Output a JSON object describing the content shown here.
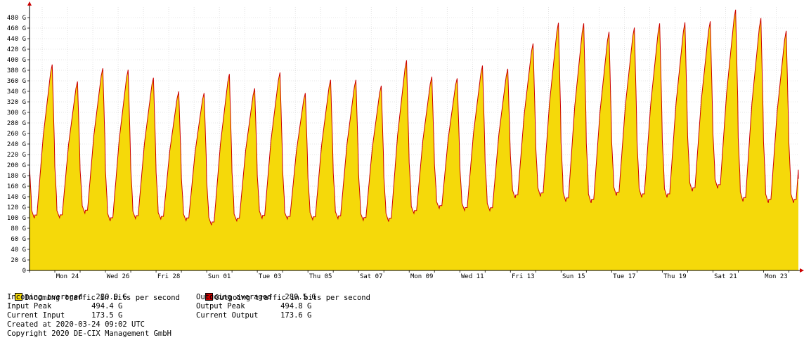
{
  "chart_data": {
    "type": "area",
    "y_unit_suffix": "G",
    "ylim": [
      0,
      500
    ],
    "y_ticks": [
      0,
      20,
      40,
      60,
      80,
      100,
      120,
      140,
      160,
      180,
      200,
      220,
      240,
      260,
      280,
      300,
      320,
      340,
      360,
      380,
      400,
      420,
      440,
      460,
      480
    ],
    "y_tick_labels": [
      "0",
      "20 G",
      "40 G",
      "60 G",
      "80 G",
      "100 G",
      "120 G",
      "140 G",
      "160 G",
      "180 G",
      "200 G",
      "220 G",
      "240 G",
      "260 G",
      "280 G",
      "300 G",
      "320 G",
      "340 G",
      "360 G",
      "380 G",
      "400 G",
      "420 G",
      "440 G",
      "460 G",
      "480 G"
    ],
    "x_day_start": "2020-02-23 00:00",
    "x_day_end": "2020-03-24 09:02",
    "x_tick_labels": [
      {
        "day": "2020-02-24",
        "label": "Mon 24"
      },
      {
        "day": "2020-02-26",
        "label": "Wed 26"
      },
      {
        "day": "2020-02-28",
        "label": "Fri 28"
      },
      {
        "day": "2020-03-01",
        "label": "Sun 01"
      },
      {
        "day": "2020-03-03",
        "label": "Tue 03"
      },
      {
        "day": "2020-03-05",
        "label": "Thu 05"
      },
      {
        "day": "2020-03-07",
        "label": "Sat 07"
      },
      {
        "day": "2020-03-09",
        "label": "Mon 09"
      },
      {
        "day": "2020-03-11",
        "label": "Wed 11"
      },
      {
        "day": "2020-03-13",
        "label": "Fri 13"
      },
      {
        "day": "2020-03-15",
        "label": "Sun 15"
      },
      {
        "day": "2020-03-17",
        "label": "Tue 17"
      },
      {
        "day": "2020-03-19",
        "label": "Thu 19"
      },
      {
        "day": "2020-03-21",
        "label": "Sat 21"
      },
      {
        "day": "2020-03-23",
        "label": "Mon 23"
      }
    ],
    "grid": true,
    "daily_peaks": {
      "days": [
        "2020-02-23",
        "2020-02-24",
        "2020-02-25",
        "2020-02-26",
        "2020-02-27",
        "2020-02-28",
        "2020-02-29",
        "2020-03-01",
        "2020-03-02",
        "2020-03-03",
        "2020-03-04",
        "2020-03-05",
        "2020-03-06",
        "2020-03-07",
        "2020-03-08",
        "2020-03-09",
        "2020-03-10",
        "2020-03-11",
        "2020-03-12",
        "2020-03-13",
        "2020-03-14",
        "2020-03-15",
        "2020-03-16",
        "2020-03-17",
        "2020-03-18",
        "2020-03-19",
        "2020-03-20",
        "2020-03-21",
        "2020-03-22",
        "2020-03-23"
      ],
      "peak": [
        390,
        358,
        383,
        380,
        365,
        339,
        336,
        372,
        345,
        375,
        336,
        361,
        361,
        350,
        398,
        367,
        364,
        388,
        382,
        430,
        469,
        468,
        452,
        460,
        468,
        470,
        472,
        494,
        478,
        454
      ],
      "trough": [
        90,
        92,
        100,
        85,
        90,
        90,
        87,
        77,
        86,
        90,
        90,
        88,
        90,
        87,
        83,
        100,
        110,
        105,
        105,
        128,
        130,
        120,
        118,
        132,
        128,
        128,
        140,
        145,
        120,
        118
      ],
      "last_value": 173.5
    },
    "series": [
      {
        "name": "Incoming traffic in bits per second",
        "color": "#f5d90a",
        "style": "area"
      },
      {
        "name": "Outgoing traffic in bits per second",
        "color": "#cc0000",
        "style": "line"
      }
    ]
  },
  "legend": {
    "incoming_label": "Incoming traffic in bits per second",
    "outgoing_label": "Outgoing traffic in bits per second",
    "incoming_averaged": "Incoming averaged   280.0 G",
    "input_peak": "Input Peak         494.4 G",
    "current_input": "Current Input      173.5 G",
    "outgoing_averaged": "Outgoing averaged   280.5 G",
    "output_peak": "Output Peak        494.8 G",
    "current_output": "Current Output     173.6 G",
    "created_at": "Created at 2020-03-24 09:02 UTC",
    "copyright": "Copyright 2020 DE-CIX Management GmbH"
  }
}
